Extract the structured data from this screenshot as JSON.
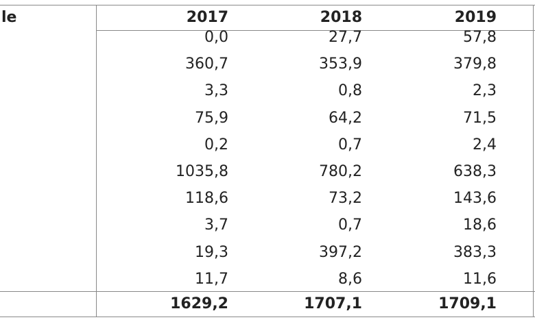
{
  "table": {
    "header": [
      "le",
      "2017",
      "2018",
      "2019"
    ],
    "rows": [
      [
        "0,0",
        "27,7",
        "57,8"
      ],
      [
        "360,7",
        "353,9",
        "379,8"
      ],
      [
        "3,3",
        "0,8",
        "2,3"
      ],
      [
        "75,9",
        "64,2",
        "71,5"
      ],
      [
        "0,2",
        "0,7",
        "2,4"
      ],
      [
        "1035,8",
        "780,2",
        "638,3"
      ],
      [
        "118,6",
        "73,2",
        "143,6"
      ],
      [
        "3,7",
        "0,7",
        "18,6"
      ],
      [
        "19,3",
        "397,2",
        "383,3"
      ],
      [
        "11,7",
        "8,6",
        "11,6"
      ]
    ],
    "total": [
      "1629,2",
      "1707,1",
      "1709,1"
    ]
  }
}
